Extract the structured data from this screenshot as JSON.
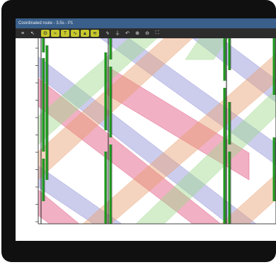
{
  "window": {
    "title": "Coordinated route - 3.5s - P1"
  },
  "toolbar": {
    "buttons": [
      {
        "name": "menu-icon",
        "glyph": "≡",
        "active": false
      },
      {
        "name": "pointer-icon",
        "glyph": "↖",
        "active": false
      },
      {
        "name": "gear-icon",
        "glyph": "⚙",
        "active": true
      },
      {
        "name": "band-icon",
        "glyph": "≈",
        "active": true
      },
      {
        "name": "tx-icon",
        "glyph": "T",
        "active": true
      },
      {
        "name": "tune-icon",
        "glyph": "∿",
        "active": true
      },
      {
        "name": "chart-icon",
        "glyph": "▲",
        "active": true
      },
      {
        "name": "wave-icon",
        "glyph": "≋",
        "active": true
      },
      {
        "name": "bolt-icon",
        "glyph": "ϟ",
        "active": false
      },
      {
        "name": "filter-icon",
        "glyph": "⏚",
        "active": false
      },
      {
        "name": "undo-icon",
        "glyph": "↶",
        "active": false
      },
      {
        "name": "zoom-in-icon",
        "glyph": "⊕",
        "active": false
      },
      {
        "name": "zoom-out-icon",
        "glyph": "⊖",
        "active": false
      },
      {
        "name": "fit-icon",
        "glyph": "⛶",
        "active": false
      }
    ]
  },
  "chart": {
    "y_ticks": [
      "35:10",
      "35:00",
      "34:50",
      "34:40",
      "34:30",
      "34:20",
      "34:10",
      "34:00",
      "33:50",
      "33:40",
      "33:20"
    ],
    "intersections": [
      "VC",
      "VC/4",
      "VC",
      "V"
    ],
    "roads": [
      "ZL_2,5-Sra - VA",
      "ZL_DV-Bat - VA",
      "ZL_Dre-Bat - VA",
      "ZL_Hrb-Bat - VA"
    ],
    "percentages": [
      {
        "text": "100.00 %",
        "color": "#2a2ab0"
      },
      {
        "text": "73.75 %",
        "color": "#b06a10"
      },
      {
        "text": "100.00 %",
        "color": "#2a2ab0"
      },
      {
        "text": "73.08 %",
        "color": "#c02020"
      },
      {
        "text": "100.00 %",
        "color": "#6a7a10"
      },
      {
        "text": "83.11 %",
        "color": "#9a1050"
      },
      {
        "text": "80.47 %",
        "color": "#c02020"
      },
      {
        "text": "73.08 %",
        "color": "#4a8a2a"
      },
      {
        "text": "84.00 %",
        "color": "#8a6a20"
      },
      {
        "text": "100.00 %",
        "color": "#2a2ab0"
      },
      {
        "text": "100.00 %",
        "color": "#2a2ab0"
      },
      {
        "text": "73.78 %",
        "color": "#c02020"
      }
    ],
    "markers": [
      "37",
      "59",
      "58",
      "53",
      "53",
      "38",
      "56",
      "53",
      "43",
      "52"
    ],
    "colors": {
      "pink": "#e0507a",
      "blue": "#8f8fd8",
      "orange": "#e8a070",
      "green": "#9fd98f",
      "signal_green": "#1a9a1a"
    }
  }
}
